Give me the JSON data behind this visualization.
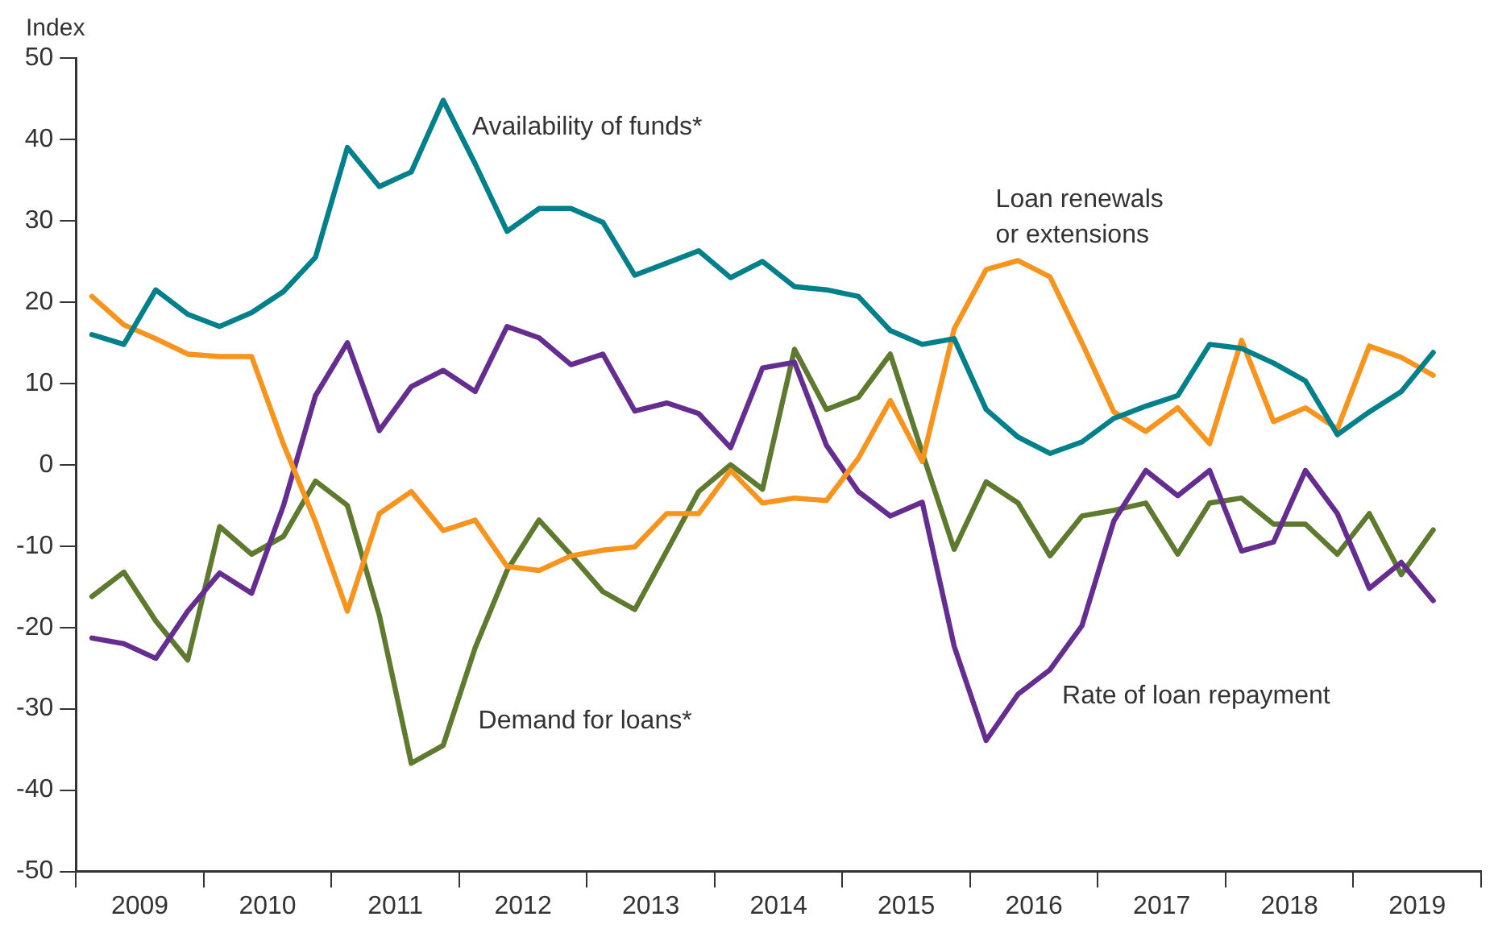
{
  "chart_data": {
    "type": "line",
    "ylabel": "Index",
    "x": [
      2009.125,
      2009.375,
      2009.625,
      2009.875,
      2010.125,
      2010.375,
      2010.625,
      2010.875,
      2011.125,
      2011.375,
      2011.625,
      2011.875,
      2012.125,
      2012.375,
      2012.625,
      2012.875,
      2013.125,
      2013.375,
      2013.625,
      2013.875,
      2014.125,
      2014.375,
      2014.625,
      2014.875,
      2015.125,
      2015.375,
      2015.625,
      2015.875,
      2016.125,
      2016.375,
      2016.625,
      2016.875,
      2017.125,
      2017.375,
      2017.625,
      2017.875,
      2018.125,
      2018.375,
      2018.625,
      2018.875,
      2019.125,
      2019.375,
      2019.625
    ],
    "xlim": [
      2009,
      2020
    ],
    "xticks": [
      {
        "value": 2009,
        "label": null
      },
      {
        "value": 2009.5,
        "label": "2009"
      },
      {
        "value": 2010,
        "label": null
      },
      {
        "value": 2010.5,
        "label": "2010"
      },
      {
        "value": 2011,
        "label": null
      },
      {
        "value": 2011.5,
        "label": "2011"
      },
      {
        "value": 2012,
        "label": null
      },
      {
        "value": 2012.5,
        "label": "2012"
      },
      {
        "value": 2013,
        "label": null
      },
      {
        "value": 2013.5,
        "label": "2013"
      },
      {
        "value": 2014,
        "label": null
      },
      {
        "value": 2014.5,
        "label": "2014"
      },
      {
        "value": 2015,
        "label": null
      },
      {
        "value": 2015.5,
        "label": "2015"
      },
      {
        "value": 2016,
        "label": null
      },
      {
        "value": 2016.5,
        "label": "2016"
      },
      {
        "value": 2017,
        "label": null
      },
      {
        "value": 2017.5,
        "label": "2017"
      },
      {
        "value": 2018,
        "label": null
      },
      {
        "value": 2018.5,
        "label": "2018"
      },
      {
        "value": 2019,
        "label": null
      },
      {
        "value": 2019.5,
        "label": "2019"
      },
      {
        "value": 2020,
        "label": null
      }
    ],
    "ylim": [
      -50,
      50
    ],
    "yticks": [
      -50,
      -40,
      -30,
      -20,
      -10,
      0,
      10,
      20,
      30,
      40,
      50
    ],
    "grid": false,
    "legend": false,
    "marker": "none",
    "line_style": "solid",
    "series": [
      {
        "name": "Availability of funds*",
        "color": "#00808a",
        "values": [
          16,
          14.8,
          21.5,
          18.5,
          17,
          18.7,
          21.3,
          25.5,
          39,
          34.2,
          36,
          44.8,
          37,
          28.7,
          31.5,
          31.5,
          29.8,
          23.3,
          24.8,
          26.3,
          23,
          25,
          21.9,
          21.5,
          20.7,
          16.5,
          14.8,
          15.5,
          6.8,
          3.4,
          1.4,
          2.8,
          5.7,
          7.2,
          8.5,
          14.8,
          14.3,
          12.5,
          10.3,
          3.7,
          6.5,
          9,
          13.8
        ]
      },
      {
        "name": "Loan renewals or extensions",
        "color": "#f7941d",
        "values": [
          20.7,
          17.2,
          15.5,
          13.6,
          13.3,
          13.3,
          2.5,
          -7,
          -18,
          -6,
          -3.3,
          -8.1,
          -6.8,
          -12.5,
          -13,
          -11.2,
          -10.5,
          -10.1,
          -6,
          -6,
          -0.7,
          -4.7,
          -4.1,
          -4.4,
          0.8,
          7.9,
          0.4,
          16.7,
          24,
          25.1,
          23.1,
          15,
          6.5,
          4.1,
          7,
          2.6,
          15.3,
          5.3,
          7,
          4.4,
          14.6,
          13.2,
          11
        ]
      },
      {
        "name": "Rate of loan repayment",
        "color": "#662d91",
        "values": [
          -21.3,
          -22,
          -23.8,
          -18,
          -13.3,
          -15.8,
          -5,
          8.5,
          15,
          4.2,
          9.6,
          11.6,
          9,
          17,
          15.6,
          12.3,
          13.6,
          6.6,
          7.6,
          6.3,
          2.1,
          11.9,
          12.6,
          2.4,
          -3.3,
          -6.3,
          -4.6,
          -22.3,
          -33.9,
          -28.2,
          -25.2,
          -19.8,
          -6.9,
          -0.7,
          -3.8,
          -0.7,
          -10.6,
          -9.5,
          -0.7,
          -6,
          -15.2,
          -12,
          -16.7
        ]
      },
      {
        "name": "Demand for loans*",
        "color": "#5e7a2f",
        "values": [
          -16.2,
          -13.2,
          -19.2,
          -24,
          -7.6,
          -11,
          -8.8,
          -2,
          -5,
          -18.5,
          -36.7,
          -34.5,
          -22.5,
          -13,
          -6.8,
          -11.1,
          -15.6,
          -17.8,
          -10.6,
          -3.3,
          0,
          -3,
          14.2,
          6.8,
          8.3,
          13.6,
          1.5,
          -10.4,
          -2.1,
          -4.7,
          -11.2,
          -6.3,
          -5.6,
          -4.7,
          -11,
          -4.7,
          -4.1,
          -7.3,
          -7.3,
          -11,
          -6,
          -13.5,
          -8
        ]
      }
    ]
  }
}
